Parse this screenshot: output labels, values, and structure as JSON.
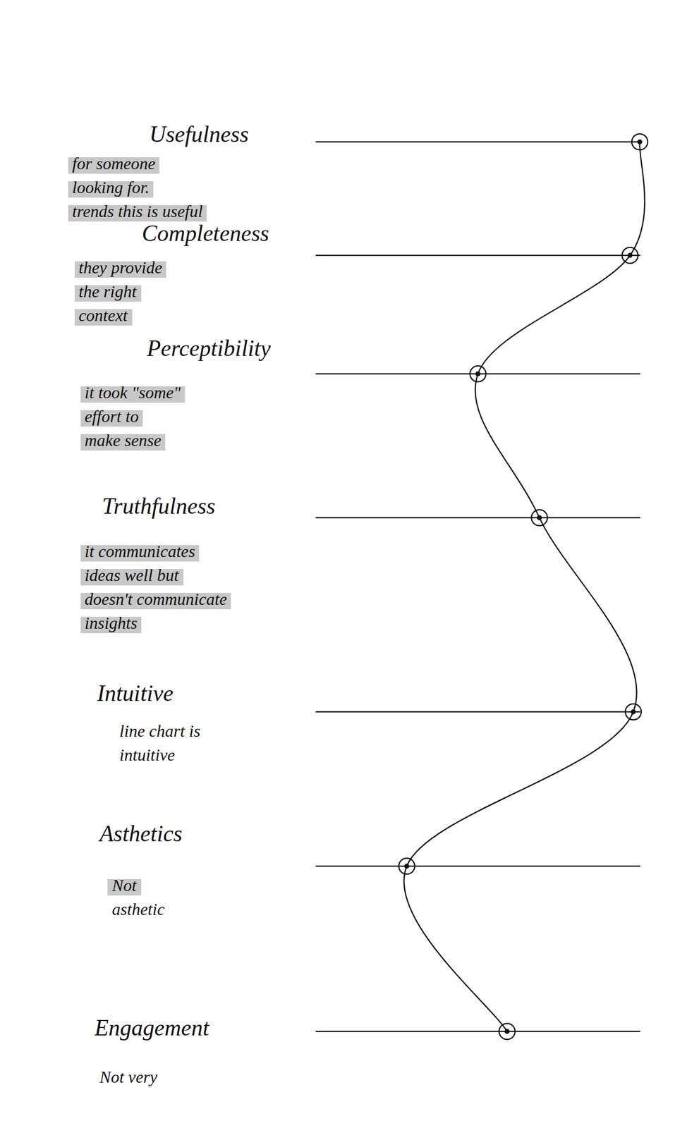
{
  "chart_data": {
    "type": "line",
    "orientation": "horizontal",
    "categories": [
      "Usefulness",
      "Completeness",
      "Perceptibility",
      "Truthfulness",
      "Intuitive",
      "Asthetics",
      "Engagement"
    ],
    "values": [
      100,
      97,
      50,
      69,
      98,
      28,
      59
    ],
    "annotations": [
      [
        "for someone",
        "looking for.",
        "trends this is useful"
      ],
      [
        "they provide",
        "the right",
        "context"
      ],
      [
        "it took \"some\"",
        "effort to",
        "make sense"
      ],
      [
        "it communicates",
        "ideas well but",
        "doesn't communicate",
        "insights"
      ],
      [
        "line chart is",
        "intuitive"
      ],
      [
        "Not",
        "asthetic"
      ],
      [
        "Not very"
      ]
    ],
    "xlim": [
      0,
      100
    ],
    "tick_labels": false,
    "grid": false,
    "marker": "circle",
    "color": "#111111"
  }
}
